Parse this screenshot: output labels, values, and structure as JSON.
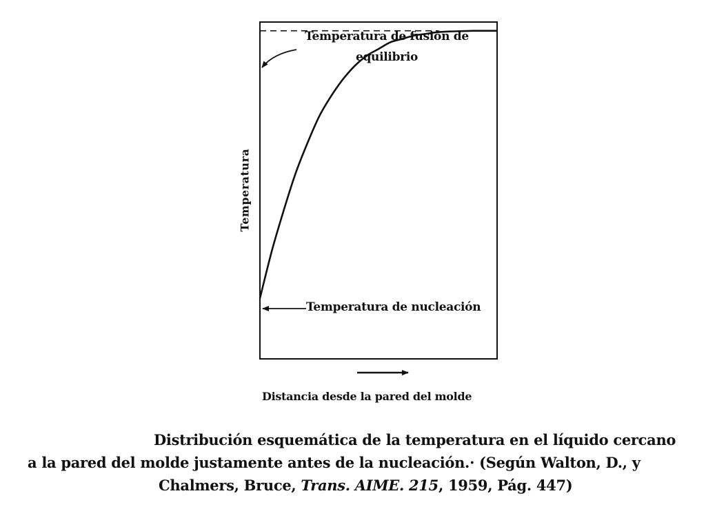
{
  "chart_data": {
    "type": "line",
    "title": "",
    "xlabel": "Distancia desde la pared del molde",
    "ylabel": "Temperatura",
    "xlim": [
      0,
      1
    ],
    "ylim": [
      0,
      1
    ],
    "ticks": false,
    "grid": false,
    "series": [
      {
        "style": "solid",
        "x": [
          0,
          0.05,
          0.1,
          0.15,
          0.2,
          0.25,
          0.3,
          0.35,
          0.4,
          0.45,
          0.5,
          0.55,
          0.6,
          0.65,
          0.7,
          0.75,
          0.8,
          0.85,
          0.9,
          0.95,
          1.0
        ],
        "y": [
          0.18,
          0.32,
          0.44,
          0.55,
          0.64,
          0.72,
          0.78,
          0.83,
          0.87,
          0.9,
          0.92,
          0.94,
          0.95,
          0.96,
          0.965,
          0.97,
          0.972,
          0.973,
          0.974,
          0.974,
          0.974
        ]
      },
      {
        "style": "dashed",
        "x": [
          0,
          0.75
        ],
        "y": [
          0.974,
          0.974
        ]
      }
    ],
    "annotations": [
      {
        "text_line1": "Temperatura de fusión de",
        "text_line2": "equilibrio",
        "points_to": "equilibrium melting temperature line at wall"
      },
      {
        "text": "Temperatura de nucleación",
        "points_to": "curve start at wall"
      }
    ],
    "x_direction_arrow": true
  },
  "caption": {
    "line1": "Distribución esquemática de la temperatura en el líquido cercano",
    "line2": "a la pared del molde justamente antes de la nucleación.· (Según Walton, D., y",
    "line3_pre": "Chalmers, Bruce, ",
    "line3_italic": "Trans. AIME. 215",
    "line3_post": ", 1959, Pág. 447)"
  }
}
